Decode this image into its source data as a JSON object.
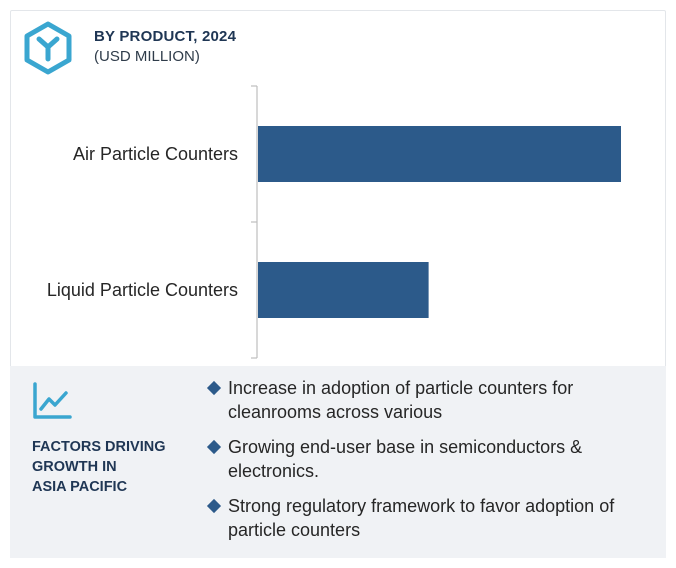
{
  "header": {
    "title": "BY PRODUCT, 2024",
    "subtitle": "(USD MILLION)"
  },
  "colors": {
    "bar": "#2c5a8a",
    "logo": "#3aa6d0",
    "heading": "#1f3654",
    "footer_bg": "#f0f2f5",
    "axis": "#bdbdbd"
  },
  "chart_data": {
    "type": "bar",
    "orientation": "horizontal",
    "categories": [
      "Air Particle Counters",
      "Liquid Particle Counters"
    ],
    "values": [
      100,
      47
    ],
    "xlim": [
      0,
      100
    ],
    "grid": false,
    "legend": "none"
  },
  "factors": {
    "heading_lines": [
      "FACTORS DRIVING",
      "GROWTH IN",
      "ASIA PACIFIC"
    ],
    "items": [
      "Increase in adoption of particle counters for cleanrooms across various",
      "Growing end-user base in semiconductors & electronics.",
      "Strong regulatory framework to favor adoption of particle counters"
    ],
    "icon": "trend-chart-icon"
  },
  "logo_icon": "hexagon-y-logo-icon"
}
